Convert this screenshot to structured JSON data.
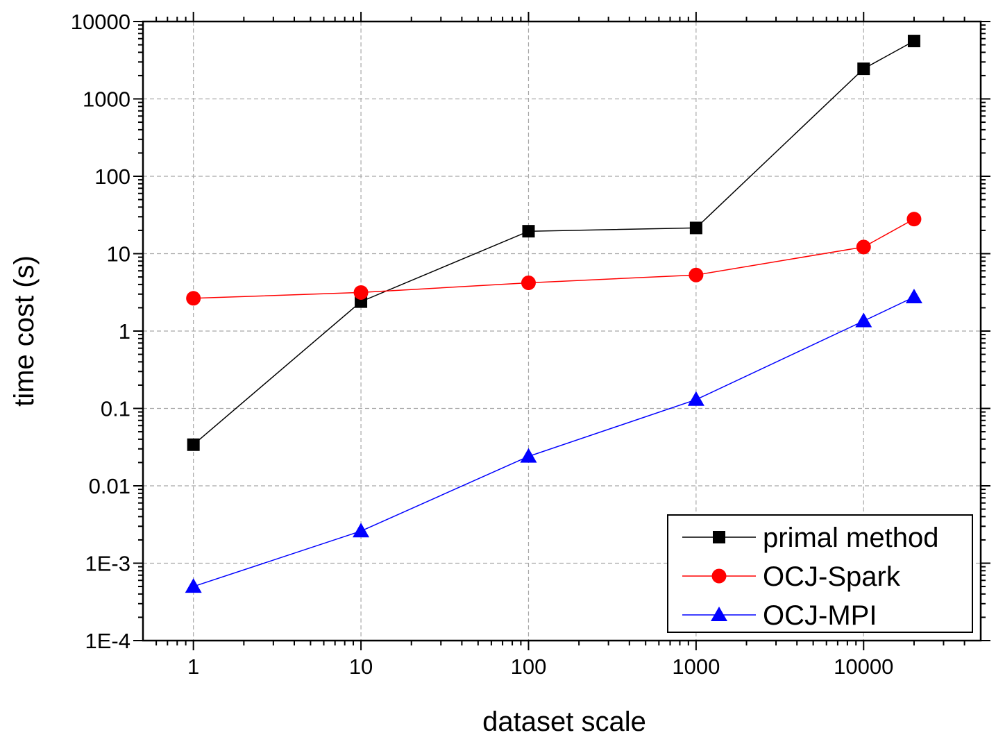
{
  "chart_data": {
    "type": "line",
    "title": "",
    "xlabel": "dataset scale",
    "ylabel": "time cost (s)",
    "xscale": "log",
    "yscale": "log",
    "xlim": [
      0.5,
      50000
    ],
    "ylim": [
      0.0001,
      10000
    ],
    "xticks": [
      1,
      10,
      100,
      1000,
      10000
    ],
    "xtick_labels": [
      "1",
      "10",
      "100",
      "1000",
      "10000"
    ],
    "yticks": [
      0.0001,
      0.001,
      0.01,
      0.1,
      1,
      10,
      100,
      1000,
      10000
    ],
    "ytick_labels": [
      "1E-4",
      "1E-3",
      "0.01",
      "0.1",
      "1",
      "10",
      "100",
      "1000",
      "10000"
    ],
    "grid": true,
    "legend_position": "bottom-right",
    "x": [
      1,
      10,
      100,
      1000,
      10000,
      20000
    ],
    "series": [
      {
        "name": "primal method",
        "color": "#000000",
        "marker": "square",
        "values": [
          0.034,
          2.4,
          19.5,
          21.5,
          2450,
          5600
        ]
      },
      {
        "name": "OCJ-Spark",
        "color": "#ff0000",
        "marker": "circle",
        "values": [
          2.65,
          3.15,
          4.2,
          5.3,
          12.2,
          28
        ]
      },
      {
        "name": "OCJ-MPI",
        "color": "#0000ff",
        "marker": "triangle",
        "values": [
          0.0005,
          0.0026,
          0.024,
          0.13,
          1.35,
          2.75
        ]
      }
    ]
  }
}
